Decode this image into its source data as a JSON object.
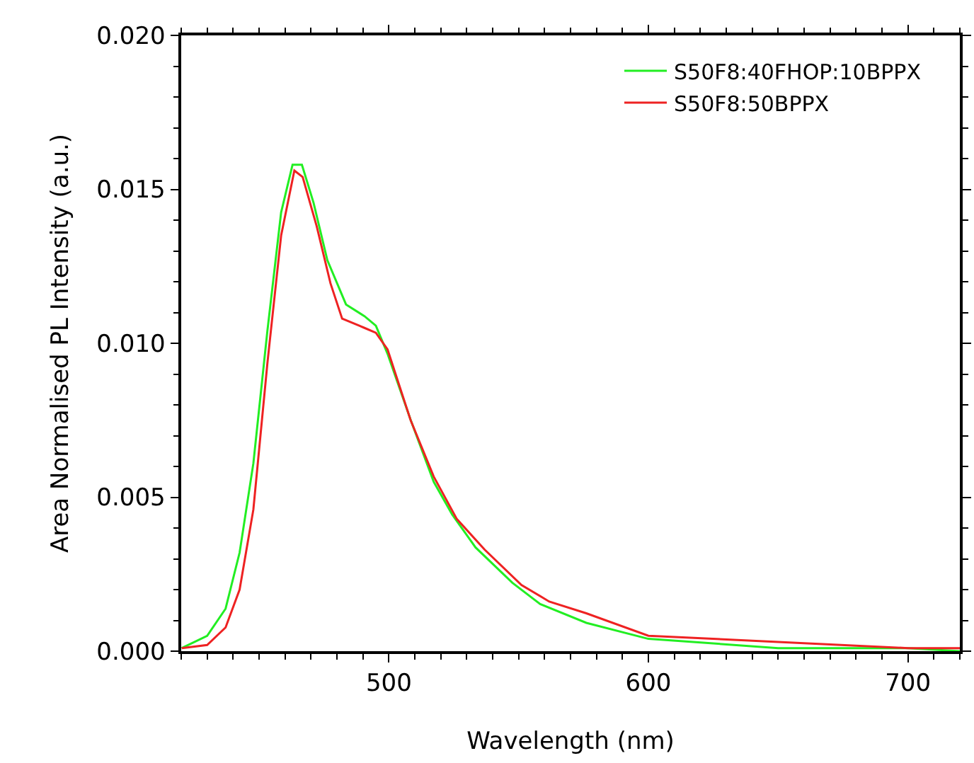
{
  "chart_data": {
    "type": "line",
    "xlabel": "Wavelength (nm)",
    "ylabel": "Area Normalised PL Intensity (a.u.)",
    "xlim": [
      420,
      720
    ],
    "xticks": [
      500,
      600,
      700
    ],
    "ylim": [
      0,
      0.02
    ],
    "yticks": [
      {
        "value": 0,
        "label": "0.000"
      },
      {
        "value": 0.005,
        "label": "0.005"
      },
      {
        "value": 0.01,
        "label": "0.010"
      },
      {
        "value": 0.015,
        "label": "0.015"
      },
      {
        "value": 0.02,
        "label": "0.020"
      }
    ],
    "legend": "top right",
    "marker": "none",
    "line_style": "solid",
    "series": [
      {
        "name": "S50F8:40FHOP:10BPPX",
        "color": "#22ee22",
        "x": [
          420.2,
          430,
          437.1,
          442.5,
          447.8,
          453.2,
          458.5,
          462.9,
          466.5,
          471,
          476.3,
          483.5,
          490.6,
          495,
          499.5,
          508.4,
          517.3,
          524.4,
          533.4,
          547.6,
          558.3,
          576.1,
          600,
          650,
          700,
          720
        ],
        "values": [
          0.0001,
          0.0005,
          0.00138,
          0.0032,
          0.0061,
          0.0104,
          0.01425,
          0.0158,
          0.0158,
          0.01456,
          0.0127,
          0.01126,
          0.01088,
          0.01057,
          0.00966,
          0.00751,
          0.0055,
          0.00444,
          0.00337,
          0.00222,
          0.00153,
          0.00092,
          0.0004,
          0.0001,
          0.0001,
          0.0
        ]
      },
      {
        "name": "S50F8:50BPPX",
        "color": "#ee2222",
        "x": [
          420.2,
          430,
          437.1,
          442.5,
          447.8,
          453.2,
          458.5,
          463.6,
          466.8,
          472.2,
          477.5,
          482,
          490.6,
          495,
          499.5,
          508.4,
          517.3,
          526.2,
          536.9,
          551.1,
          561.8,
          576.1,
          600,
          650,
          700,
          720
        ],
        "values": [
          0.0001,
          0.0002,
          0.00077,
          0.002,
          0.0046,
          0.00935,
          0.0135,
          0.01561,
          0.0154,
          0.0138,
          0.01195,
          0.0108,
          0.0105,
          0.01034,
          0.0098,
          0.0075,
          0.00567,
          0.00429,
          0.0033,
          0.00215,
          0.00161,
          0.00123,
          0.0005,
          0.0003,
          0.0001,
          0.0001
        ]
      }
    ]
  }
}
